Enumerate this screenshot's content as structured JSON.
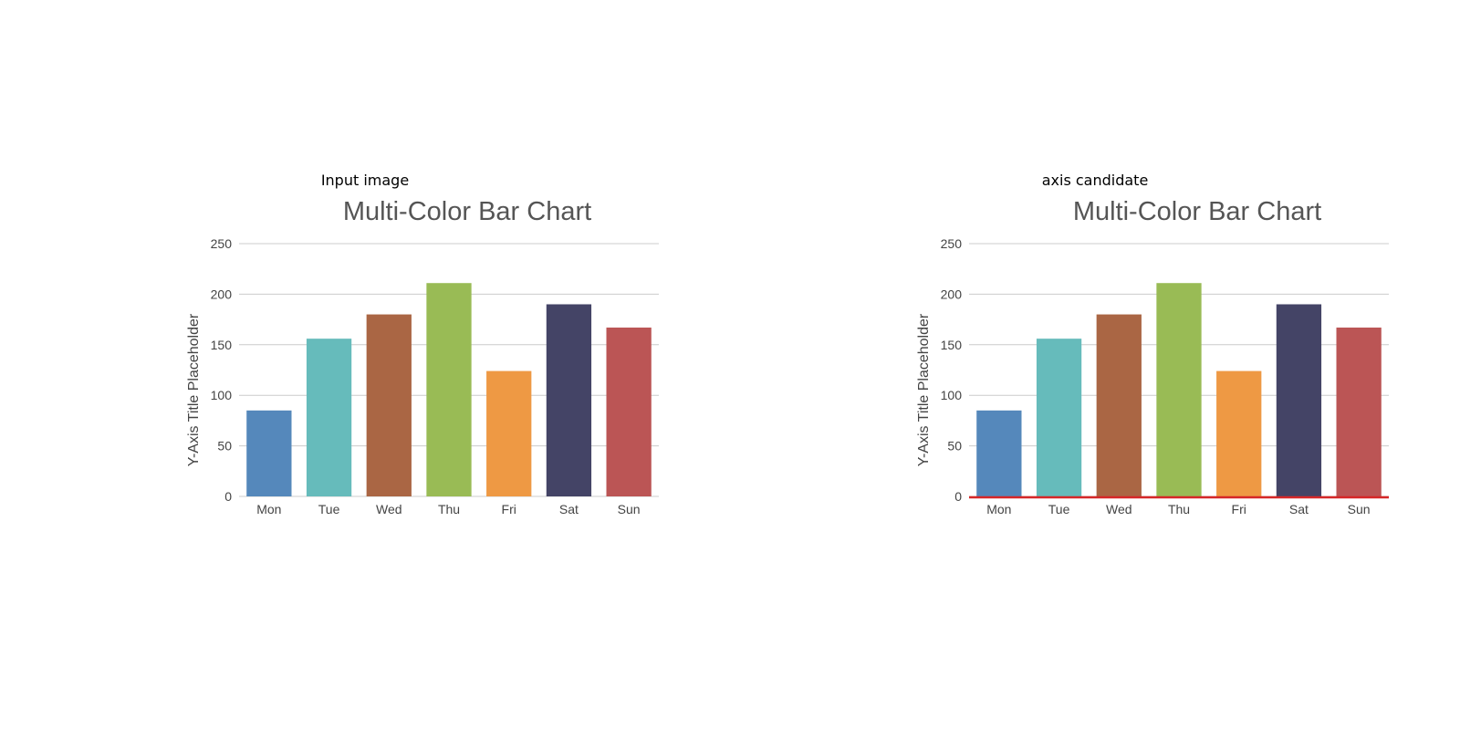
{
  "panels": [
    {
      "caption": "Input image",
      "highlight_axis": false
    },
    {
      "caption": "axis candidate",
      "highlight_axis": true,
      "highlight_color": "#d62728"
    }
  ],
  "chart_data": {
    "type": "bar",
    "title": "Multi-Color Bar Chart",
    "xlabel": "",
    "ylabel": "Y-Axis Title Placeholder",
    "categories": [
      "Mon",
      "Tue",
      "Wed",
      "Thu",
      "Fri",
      "Sat",
      "Sun"
    ],
    "values": [
      85,
      156,
      180,
      211,
      124,
      190,
      167
    ],
    "colors": [
      "#5588bb",
      "#66bbbb",
      "#aa6644",
      "#99bb55",
      "#ee9944",
      "#444466",
      "#bb5555"
    ],
    "ylim": [
      0,
      250
    ],
    "yticks": [
      0,
      50,
      100,
      150,
      200,
      250
    ],
    "grid": true,
    "legend": "none"
  }
}
